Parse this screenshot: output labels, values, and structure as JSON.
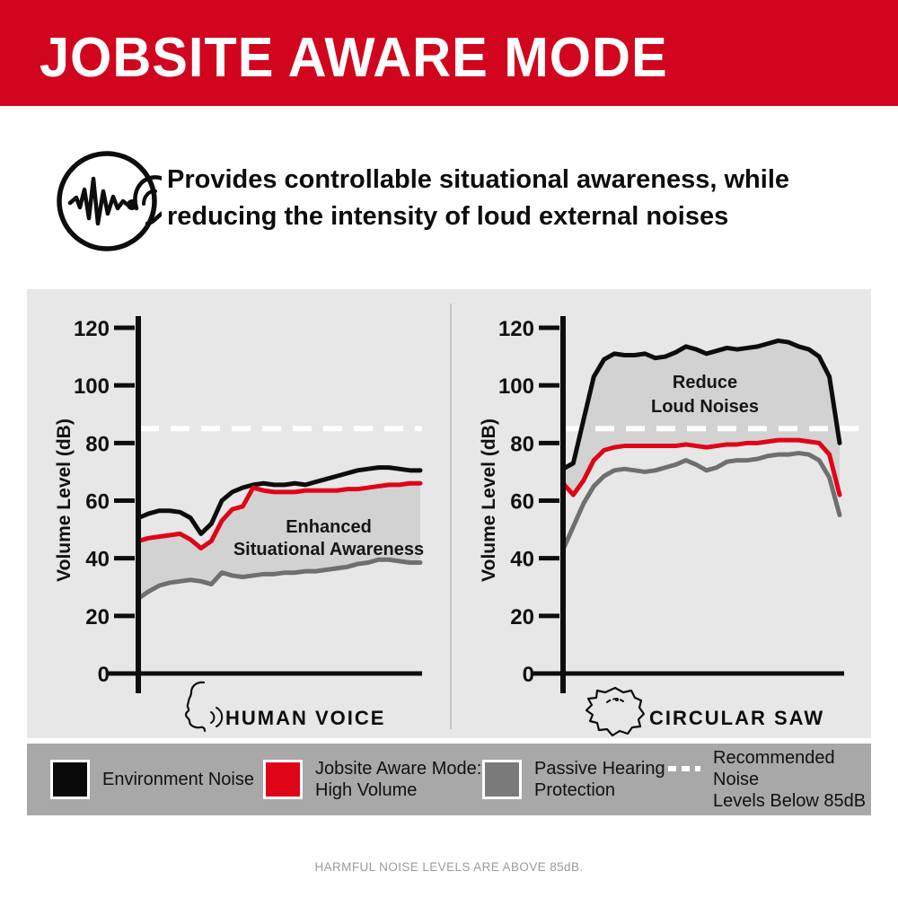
{
  "header": {
    "title": "JOBSITE AWARE MODE",
    "background": "#D2051E",
    "text_color": "#FFFFFF"
  },
  "intro": {
    "icon": "soundwave-into-ear-icon",
    "line1": "Provides controllable situational awareness, while",
    "line2": "reducing the intensity of loud external noises"
  },
  "panel": {
    "background": "#E7E7E7"
  },
  "chart_data": [
    {
      "type": "line",
      "x_label": "HUMAN VOICE",
      "x_icon": "speaking-face-icon",
      "ylabel": "Volume Level (dB)",
      "ylim": [
        0,
        120
      ],
      "yticks": [
        0,
        20,
        40,
        60,
        80,
        100,
        120
      ],
      "threshold": {
        "value": 85,
        "style": "dashed",
        "color": "#FFFFFF"
      },
      "annotation": {
        "line1": "Enhanced",
        "line2": "Situational Awareness"
      },
      "fill_between": [
        "jobsite_aware",
        "passive_protection"
      ],
      "fill_color": "#D2D2D2",
      "series": [
        {
          "key": "environment",
          "name": "Environment Noise",
          "color": "#0d0d0d",
          "values": [
            54,
            55.5,
            56.5,
            56.5,
            56,
            54,
            48.5,
            52,
            60,
            63,
            64.5,
            65.5,
            66,
            65.5,
            65.5,
            66,
            65.5,
            66.5,
            67.5,
            68.5,
            69.5,
            70.5,
            71,
            71.5,
            71.5,
            71,
            70.5,
            70.5
          ]
        },
        {
          "key": "jobsite_aware",
          "name": "Jobsite Aware Mode: High Volume",
          "color": "#E00418",
          "values": [
            46,
            47,
            47.5,
            48,
            48.5,
            46.5,
            43.5,
            46,
            53,
            57,
            58,
            64.5,
            63.5,
            63,
            63,
            63,
            63.5,
            63.5,
            63.5,
            63.5,
            64,
            64,
            64.5,
            65,
            65.5,
            65.5,
            66,
            66
          ]
        },
        {
          "key": "passive_protection",
          "name": "Passive Hearing Protection",
          "color": "#6F6F6F",
          "values": [
            26,
            28.5,
            30.5,
            31.5,
            32,
            32.5,
            32,
            31,
            35,
            34,
            33.5,
            34,
            34.5,
            34.5,
            35,
            35,
            35.5,
            35.5,
            36,
            36.5,
            37,
            38,
            38.5,
            39.5,
            39.5,
            39,
            38.5,
            38.5
          ]
        }
      ]
    },
    {
      "type": "line",
      "x_label": "CIRCULAR SAW",
      "x_icon": "circular-saw-icon",
      "ylabel": "Volume Level (dB)",
      "ylim": [
        0,
        120
      ],
      "yticks": [
        0,
        20,
        40,
        60,
        80,
        100,
        120
      ],
      "threshold": {
        "value": 85,
        "style": "dashed",
        "color": "#FFFFFF"
      },
      "annotation": {
        "line1": "Reduce",
        "line2": "Loud Noises"
      },
      "fill_between": [
        "environment",
        "jobsite_aware"
      ],
      "fill_color": "#D2D2D2",
      "series": [
        {
          "key": "environment",
          "name": "Environment Noise",
          "color": "#0d0d0d",
          "values": [
            71,
            73,
            88,
            103,
            109,
            111,
            110.5,
            110.5,
            111,
            109.5,
            110,
            111.5,
            113.5,
            112.5,
            111,
            112,
            113,
            112.5,
            113,
            113.5,
            114.5,
            115.5,
            115,
            113.5,
            112.5,
            110,
            103,
            80
          ]
        },
        {
          "key": "jobsite_aware",
          "name": "Jobsite Aware Mode: High Volume",
          "color": "#E00418",
          "values": [
            66,
            62,
            67,
            74,
            77.5,
            78.5,
            79,
            79,
            79,
            79,
            79,
            79,
            79.5,
            79,
            78.5,
            79,
            79.5,
            79.5,
            80,
            80,
            80.5,
            81,
            81,
            81,
            80.5,
            80,
            76,
            62
          ]
        },
        {
          "key": "passive_protection",
          "name": "Passive Hearing Protection",
          "color": "#6F6F6F",
          "values": [
            43,
            51,
            59,
            65,
            68.5,
            70.5,
            71,
            70.5,
            70,
            70.5,
            71.5,
            72.5,
            74,
            72.5,
            70.5,
            71.5,
            73.5,
            74,
            74,
            74.5,
            75.5,
            76,
            76,
            76.5,
            76,
            74,
            68,
            55
          ]
        }
      ]
    }
  ],
  "legend": {
    "background": "#A8A8A8",
    "items": [
      {
        "swatch": "square",
        "color": "#0A0A0A",
        "lines": [
          "Environment Noise"
        ]
      },
      {
        "swatch": "square",
        "color": "#E00418",
        "lines": [
          "Jobsite Aware Mode:",
          "High Volume"
        ]
      },
      {
        "swatch": "square",
        "color": "#7A7A7A",
        "lines": [
          "Passive Hearing",
          "Protection"
        ]
      },
      {
        "swatch": "dashed-line",
        "color": "#FFFFFF",
        "lines": [
          "Recommended Noise",
          "Levels Below 85dB"
        ]
      }
    ]
  },
  "footer": {
    "text": "HARMFUL NOISE LEVELS ARE ABOVE 85dB."
  },
  "colors": {
    "brand_red": "#D2051E",
    "panel_gray": "#E7E7E7",
    "fill_gray": "#D2D2D2",
    "legend_gray": "#A8A8A8",
    "threshold_white": "#FFFFFF"
  }
}
